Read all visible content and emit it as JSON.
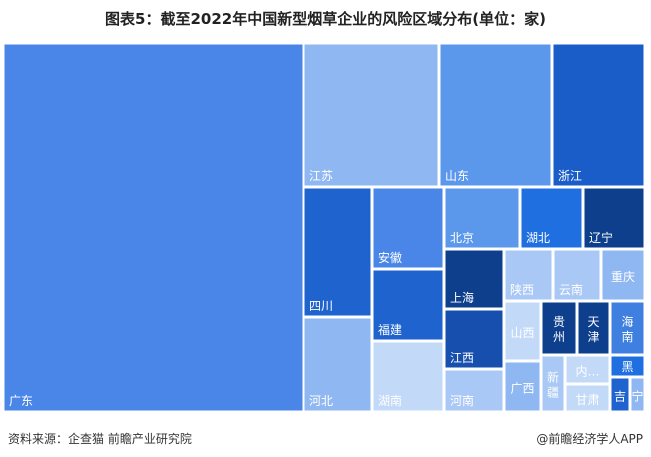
{
  "chart_data": {
    "type": "treemap",
    "title": "图表5：截至2022年中国新型烟草企业的风险区域分布(单位：家)",
    "cells": [
      {
        "label": "广东",
        "color": "#4a86e8"
      },
      {
        "label": "江苏",
        "color": "#8fb7f2"
      },
      {
        "label": "山东",
        "color": "#5b97ea"
      },
      {
        "label": "浙江",
        "color": "#1a5cc8"
      },
      {
        "label": "四川",
        "color": "#1f63cf"
      },
      {
        "label": "安徽",
        "color": "#4a86e8"
      },
      {
        "label": "北京",
        "color": "#5b97ea"
      },
      {
        "label": "湖北",
        "color": "#1f6fe0"
      },
      {
        "label": "辽宁",
        "color": "#0e3f8c"
      },
      {
        "label": "福建",
        "color": "#1f63cf"
      },
      {
        "label": "上海",
        "color": "#0e3f8c"
      },
      {
        "label": "陕西",
        "color": "#a9c8f5"
      },
      {
        "label": "云南",
        "color": "#a9c8f5"
      },
      {
        "label": "重庆",
        "color": "#8fb7f2"
      },
      {
        "label": "江西",
        "color": "#174fae"
      },
      {
        "label": "山西",
        "color": "#c3d9f8"
      },
      {
        "label": "贵州",
        "color": "#0e3f8c"
      },
      {
        "label": "天津",
        "color": "#0e3f8c"
      },
      {
        "label": "海南",
        "color": "#3e7fe0"
      },
      {
        "label": "河北",
        "color": "#8fb7f2"
      },
      {
        "label": "湖南",
        "color": "#c3d9f8"
      },
      {
        "label": "河南",
        "color": "#a9c8f5"
      },
      {
        "label": "广西",
        "color": "#8fb7f2"
      },
      {
        "label": "新疆",
        "color": "#a9c8f5"
      },
      {
        "label": "内…",
        "color": "#c3d9f8"
      },
      {
        "label": "黑",
        "color": "#1f6fe0"
      },
      {
        "label": "甘肃",
        "color": "#c3d9f8"
      },
      {
        "label": "吉",
        "color": "#1f63cf"
      },
      {
        "label": "宁",
        "color": "#8fb7f2"
      }
    ]
  },
  "footer": {
    "source": "资料来源：企查猫 前瞻产业研究院",
    "brand": "@前瞻经济学人APP"
  }
}
